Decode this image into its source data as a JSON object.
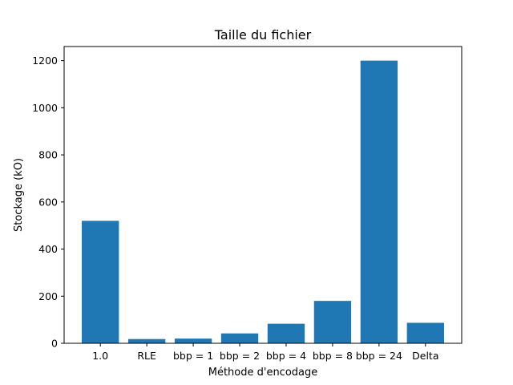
{
  "chart_data": {
    "type": "bar",
    "title": "Taille du fichier",
    "xlabel": "Méthode d'encodage",
    "ylabel": "Stockage (kO)",
    "categories": [
      "1.0",
      "RLE",
      "bbp = 1",
      "bbp = 2",
      "bbp = 4",
      "bbp = 8",
      "bbp = 24",
      "Delta"
    ],
    "values": [
      520,
      18,
      20,
      42,
      83,
      180,
      1200,
      87
    ],
    "ylim": [
      0,
      1260
    ],
    "yticks": [
      0,
      200,
      400,
      600,
      800,
      1000,
      1200
    ],
    "grid": false,
    "bar_color": "#1f77b4"
  }
}
